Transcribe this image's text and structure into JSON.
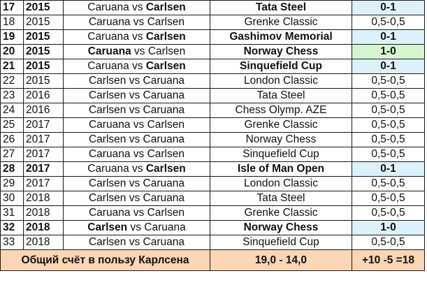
{
  "rows": [
    {
      "num": "17",
      "year": "2015",
      "white": "Caruana",
      "sep": " vs ",
      "black": "Carlsen",
      "winner": "black",
      "event": "Tata Steel",
      "score": "0-1",
      "decisive": true,
      "highlight": "blue"
    },
    {
      "num": "18",
      "year": "2015",
      "white": "Caruana",
      "sep": " vs ",
      "black": "Carlsen",
      "winner": "",
      "event": "Grenke Classic",
      "score": "0,5-0,5",
      "decisive": false,
      "highlight": ""
    },
    {
      "num": "19",
      "year": "2015",
      "white": "Caruana",
      "sep": " vs ",
      "black": "Carlsen",
      "winner": "black",
      "event": "Gashimov Memorial",
      "score": "0-1",
      "decisive": true,
      "highlight": "blue"
    },
    {
      "num": "20",
      "year": "2015",
      "white": "Caruana",
      "sep": " vs ",
      "black": "Carlsen",
      "winner": "white",
      "event": "Norway Chess",
      "score": "1-0",
      "decisive": true,
      "highlight": "green"
    },
    {
      "num": "21",
      "year": "2015",
      "white": "Caruana",
      "sep": " vs ",
      "black": "Carlsen",
      "winner": "black",
      "event": "Sinquefield Cup",
      "score": "0-1",
      "decisive": true,
      "highlight": "blue"
    },
    {
      "num": "22",
      "year": "2015",
      "white": "Carlsen",
      "sep": " vs ",
      "black": "Caruana",
      "winner": "",
      "event": "London Classic",
      "score": "0,5-0,5",
      "decisive": false,
      "highlight": ""
    },
    {
      "num": "23",
      "year": "2016",
      "white": "Carlsen",
      "sep": " vs ",
      "black": "Caruana",
      "winner": "",
      "event": "Tata Steel",
      "score": "0,5-0,5",
      "decisive": false,
      "highlight": ""
    },
    {
      "num": "24",
      "year": "2016",
      "white": "Carlsen",
      "sep": " vs ",
      "black": "Caruana",
      "winner": "",
      "event": "Chess Olymp. AZE",
      "score": "0,5-0,5",
      "decisive": false,
      "highlight": ""
    },
    {
      "num": "25",
      "year": "2017",
      "white": "Caruana",
      "sep": " vs ",
      "black": "Carlsen",
      "winner": "",
      "event": "Grenke Classic",
      "score": "0,5-0,5",
      "decisive": false,
      "highlight": ""
    },
    {
      "num": "26",
      "year": "2017",
      "white": "Carlsen",
      "sep": " vs ",
      "black": "Caruana",
      "winner": "",
      "event": "Norway Chess",
      "score": "0,5-0,5",
      "decisive": false,
      "highlight": ""
    },
    {
      "num": "27",
      "year": "2017",
      "white": "Caruana",
      "sep": " vs ",
      "black": "Carlsen",
      "winner": "",
      "event": "Sinquefield Cup",
      "score": "0,5-0,5",
      "decisive": false,
      "highlight": ""
    },
    {
      "num": "28",
      "year": "2017",
      "white": "Caruana",
      "sep": " vs ",
      "black": "Carlsen",
      "winner": "black",
      "event": "Isle of Man Open",
      "score": "0-1",
      "decisive": true,
      "highlight": "blue"
    },
    {
      "num": "29",
      "year": "2017",
      "white": "Carlsen",
      "sep": " vs ",
      "black": "Caruana",
      "winner": "",
      "event": "London Classic",
      "score": "0,5-0,5",
      "decisive": false,
      "highlight": ""
    },
    {
      "num": "30",
      "year": "2018",
      "white": "Carlsen",
      "sep": " vs ",
      "black": "Caruana",
      "winner": "",
      "event": "Tata Steel",
      "score": "0,5-0,5",
      "decisive": false,
      "highlight": ""
    },
    {
      "num": "31",
      "year": "2018",
      "white": "Caruana",
      "sep": " vs ",
      "black": "Carlsen",
      "winner": "",
      "event": "Grenke Classic",
      "score": "0,5-0,5",
      "decisive": false,
      "highlight": ""
    },
    {
      "num": "32",
      "year": "2018",
      "white": "Carlsen",
      "sep": " vs ",
      "black": "Caruana",
      "winner": "white",
      "event": "Norway Chess",
      "score": "1-0",
      "decisive": true,
      "highlight": "blue"
    },
    {
      "num": "33",
      "year": "2018",
      "white": "Carlsen",
      "sep": " vs ",
      "black": "Caruana",
      "winner": "",
      "event": "Sinquefield Cup",
      "score": "0,5-0,5",
      "decisive": false,
      "highlight": ""
    }
  ],
  "total": {
    "label": "Общий счёт в пользу Карлсена",
    "score": "19,0 - 14,0",
    "balance": "+10 -5 =18"
  },
  "colors": {
    "win_blue": "#ddf1fb",
    "win_green": "#d6f5cf",
    "total_bg": "#fcd5b4"
  }
}
